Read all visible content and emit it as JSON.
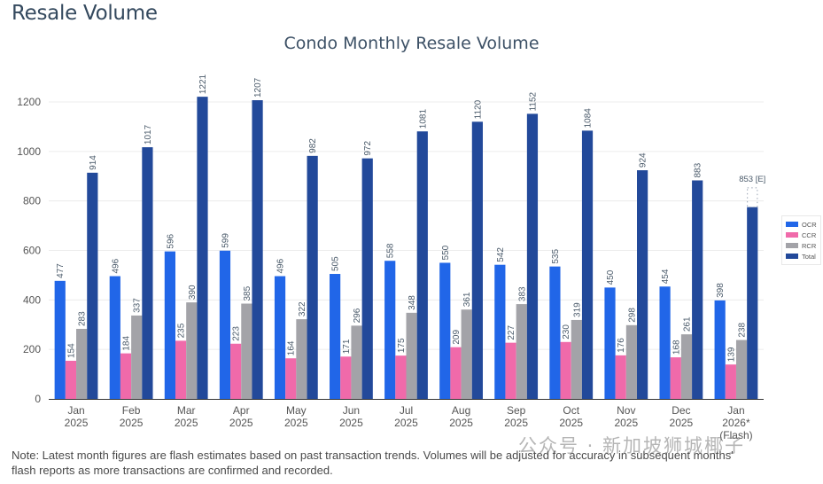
{
  "page": {
    "title": "Resale Volume",
    "note_line1": "Note: Latest month figures are flash estimates based on past transaction trends. Volumes will be adjusted for accuracy in subsequent months'",
    "note_line2": "flash reports as more transactions are confirmed and recorded.",
    "watermark": "公众号 · 新加坡狮城椰子"
  },
  "chart_data": {
    "type": "bar",
    "title": "Condo Monthly Resale Volume",
    "xlabel": "",
    "ylabel": "",
    "ylim": [
      0,
      1250
    ],
    "yticks": [
      0,
      200,
      400,
      600,
      800,
      1000,
      1200
    ],
    "grid": true,
    "legend_position": "right",
    "categories": [
      [
        "Jan",
        "2025"
      ],
      [
        "Feb",
        "2025"
      ],
      [
        "Mar",
        "2025"
      ],
      [
        "Apr",
        "2025"
      ],
      [
        "May",
        "2025"
      ],
      [
        "Jun",
        "2025"
      ],
      [
        "Jul",
        "2025"
      ],
      [
        "Aug",
        "2025"
      ],
      [
        "Sep",
        "2025"
      ],
      [
        "Oct",
        "2025"
      ],
      [
        "Nov",
        "2025"
      ],
      [
        "Dec",
        "2025"
      ],
      [
        "Jan",
        "2026*",
        "(Flash)"
      ]
    ],
    "series": [
      {
        "name": "OCR",
        "color": "#2166e8",
        "values": [
          477,
          496,
          596,
          599,
          496,
          505,
          558,
          550,
          542,
          535,
          450,
          454,
          398
        ]
      },
      {
        "name": "CCR",
        "color": "#f06aaa",
        "values": [
          154,
          184,
          235,
          223,
          164,
          171,
          175,
          209,
          227,
          230,
          176,
          168,
          139
        ]
      },
      {
        "name": "RCR",
        "color": "#a3a3a8",
        "values": [
          283,
          337,
          390,
          385,
          322,
          296,
          348,
          361,
          383,
          319,
          298,
          261,
          238
        ]
      },
      {
        "name": "Total",
        "color": "#22499a",
        "values": [
          914,
          1017,
          1221,
          1207,
          982,
          972,
          1081,
          1120,
          1152,
          1084,
          924,
          883,
          775
        ]
      }
    ],
    "estimate": {
      "category_index": 12,
      "series": "Total",
      "value": 853,
      "label": "853 [E]"
    },
    "data_label_color": "#4a5a6a"
  }
}
